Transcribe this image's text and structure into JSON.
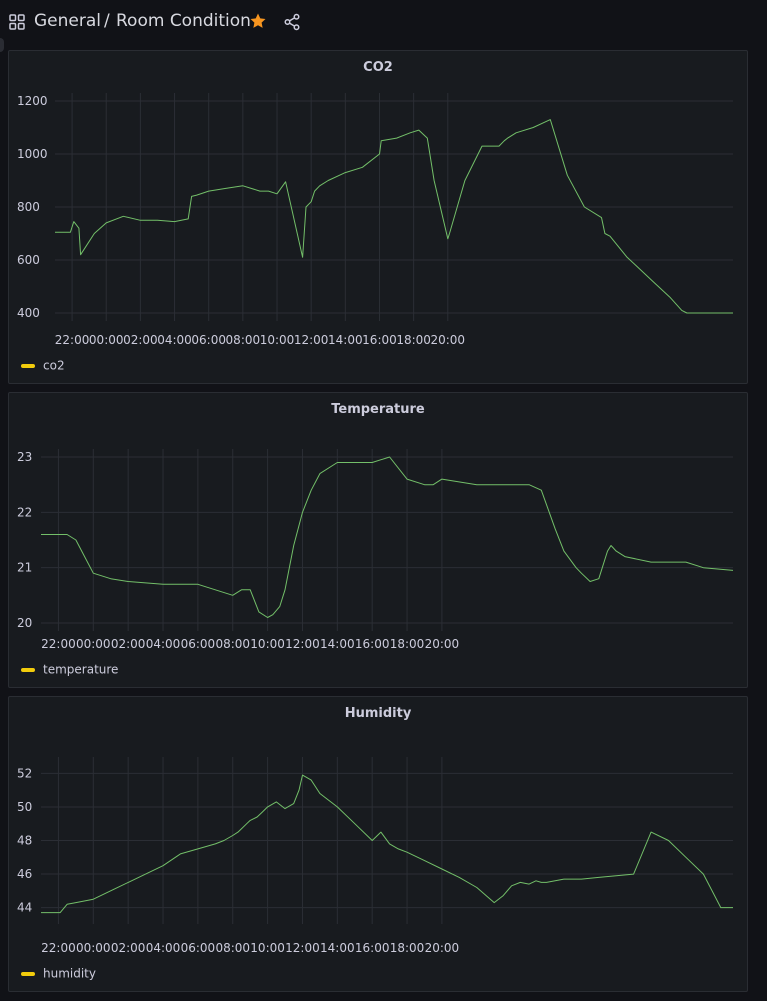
{
  "breadcrumb": {
    "folder": "General",
    "separator": "/",
    "title": "Room Condition"
  },
  "icons": {
    "apps": "grid-icon",
    "favorite": "star-icon",
    "share": "share-icon"
  },
  "colors": {
    "series": "#73bf69",
    "legend_swatch": "#f2cc0c",
    "star": "#f79520"
  },
  "x_ticks": [
    "22:00",
    "00:00",
    "02:00",
    "04:00",
    "06:00",
    "08:00",
    "10:00",
    "12:00",
    "14:00",
    "16:00",
    "18:00",
    "20:00"
  ],
  "panels": [
    {
      "title": "CO2",
      "legend": "co2"
    },
    {
      "title": "Temperature",
      "legend": "temperature"
    },
    {
      "title": "Humidity",
      "legend": "humidity"
    }
  ],
  "chart_data": [
    {
      "type": "line",
      "title": "CO2",
      "series": [
        {
          "name": "co2",
          "x": [
            21.0,
            21.9,
            22.1,
            22.4,
            22.5,
            22.8,
            23.3,
            24.0,
            25.0,
            26.0,
            27.0,
            28.0,
            28.8,
            29.0,
            29.3,
            30.0,
            31.0,
            32.0,
            33.0,
            33.5,
            34.0,
            34.5,
            35.5,
            35.7,
            36.0,
            36.2,
            36.5,
            37.0,
            38.0,
            39.0,
            40.0,
            40.1,
            41.0,
            41.8,
            42.3,
            42.8,
            43.2,
            44.0,
            44.1,
            45.0,
            46.0,
            47.0,
            47.3,
            47.5,
            48.0,
            49.0,
            50.0,
            51.0,
            52.0,
            53.0,
            53.2,
            53.5,
            54.0,
            54.5,
            55.0,
            56.0,
            57.0,
            57.7,
            58.0,
            58.5,
            59.0,
            60.0,
            60.7
          ],
          "y": [
            705,
            705,
            745,
            720,
            620,
            650,
            700,
            740,
            765,
            750,
            750,
            745,
            755,
            840,
            845,
            860,
            870,
            880,
            860,
            860,
            850,
            895,
            610,
            800,
            820,
            860,
            880,
            900,
            930,
            950,
            1000,
            1050,
            1060,
            1080,
            1090,
            1060,
            900,
            680,
            700,
            900,
            1030,
            1030,
            1050,
            1060,
            1080,
            1100,
            1130,
            920,
            800,
            760,
            700,
            690,
            650,
            610,
            580,
            520,
            460,
            410,
            400,
            400,
            400,
            400,
            400
          ]
        }
      ],
      "ylim": [
        400,
        1200
      ],
      "yticks": [
        400,
        600,
        800,
        1000,
        1200
      ]
    },
    {
      "type": "line",
      "title": "Temperature",
      "series": [
        {
          "name": "temperature",
          "x": [
            21.0,
            22.1,
            22.5,
            23.0,
            23.5,
            24.0,
            25.0,
            26.0,
            28.0,
            30.0,
            31.0,
            32.0,
            32.5,
            33.0,
            33.5,
            34.0,
            34.3,
            34.7,
            35.0,
            35.5,
            36.0,
            36.5,
            37.0,
            38.0,
            39.0,
            40.0,
            41.0,
            42.0,
            43.0,
            43.5,
            44.0,
            46.0,
            48.0,
            49.0,
            49.7,
            50.5,
            51.0,
            51.7,
            52.0,
            52.5,
            53.0,
            53.5,
            53.7,
            54.0,
            54.5,
            56.0,
            57.0,
            58.0,
            59.0,
            60.7
          ],
          "y": [
            21.6,
            21.6,
            21.6,
            21.5,
            21.2,
            20.9,
            20.8,
            20.75,
            20.7,
            20.7,
            20.6,
            20.5,
            20.6,
            20.6,
            20.2,
            20.1,
            20.15,
            20.3,
            20.6,
            21.4,
            22.0,
            22.4,
            22.7,
            22.9,
            22.9,
            22.9,
            23.0,
            22.6,
            22.5,
            22.5,
            22.6,
            22.5,
            22.5,
            22.5,
            22.4,
            21.7,
            21.3,
            21.0,
            20.9,
            20.75,
            20.8,
            21.3,
            21.4,
            21.3,
            21.2,
            21.1,
            21.1,
            21.1,
            21.0,
            20.95
          ]
        }
      ],
      "ylim": [
        20,
        23
      ],
      "yticks": [
        20,
        21,
        22,
        23
      ]
    },
    {
      "type": "line",
      "title": "Humidity",
      "series": [
        {
          "name": "humidity",
          "x": [
            21.0,
            22.1,
            22.5,
            23.0,
            24.0,
            25.0,
            26.0,
            27.0,
            28.0,
            29.0,
            30.0,
            31.0,
            31.5,
            32.0,
            32.3,
            32.5,
            32.8,
            33.0,
            33.4,
            33.7,
            34.0,
            34.5,
            35.0,
            35.5,
            35.8,
            36.0,
            36.5,
            37.0,
            38.0,
            39.0,
            40.0,
            40.5,
            41.0,
            41.5,
            42.0,
            43.0,
            44.0,
            45.0,
            46.0,
            47.0,
            47.5,
            48.0,
            48.5,
            49.0,
            49.4,
            49.7,
            50.0,
            50.5,
            51.0,
            52.0,
            53.0,
            54.0,
            55.0,
            56.0,
            57.0,
            58.0,
            59.0,
            60.0,
            60.7
          ],
          "y": [
            43.7,
            43.7,
            44.2,
            44.3,
            44.5,
            45.0,
            45.5,
            46.0,
            46.5,
            47.2,
            47.5,
            47.8,
            48.0,
            48.3,
            48.5,
            48.7,
            49.0,
            49.2,
            49.4,
            49.7,
            50.0,
            50.3,
            49.9,
            50.2,
            51.0,
            51.9,
            51.6,
            50.8,
            50.0,
            49.0,
            48.0,
            48.5,
            47.8,
            47.5,
            47.3,
            46.8,
            46.3,
            45.8,
            45.2,
            44.3,
            44.7,
            45.3,
            45.5,
            45.4,
            45.6,
            45.5,
            45.5,
            45.6,
            45.7,
            45.7,
            45.8,
            45.9,
            46.0,
            48.5,
            48.0,
            47.0,
            46.0,
            44.0,
            44.0
          ]
        }
      ],
      "ylim": [
        43.5,
        52.5
      ],
      "yticks": [
        44,
        46,
        48,
        50,
        52
      ]
    }
  ]
}
